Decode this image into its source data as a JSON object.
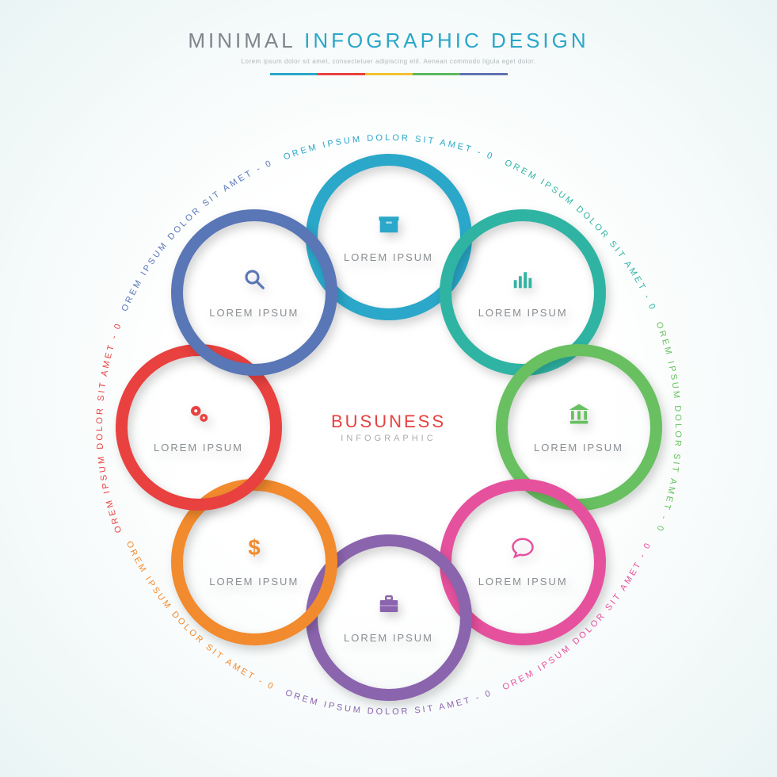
{
  "header": {
    "title_part1": "MINIMAL",
    "title_part2": "INFOGRAPHIC DESIGN",
    "title_part1_color": "#7d868c",
    "title_part2_color": "#2aa7c9",
    "subtitle": "Lorem ipsum dolor sit amet, consectetuer adipiscing elit. Aenean commodo ligula eget dolor.",
    "subtitle_color": "#b2b7ba",
    "rule_colors": [
      "#2aa7c9",
      "#e8413f",
      "#f2c233",
      "#5cb860",
      "#5f73b1"
    ]
  },
  "center": {
    "line1": "BUSUNESS",
    "line1_color": "#e8413f",
    "line2": "INFOGRAPHIC"
  },
  "layout": {
    "stage_size": 780,
    "ring_diameter": 210,
    "ring_border": 15,
    "orbit_radius": 240,
    "arc_text_radius": 362
  },
  "rings": [
    {
      "id": "01",
      "angle": -90,
      "color": "#2aa7c9",
      "icon": "box",
      "label": "LOREM IPSUM",
      "arc": "LOREM  IPSUM  DOLOR  SIT  AMET - 01"
    },
    {
      "id": "02",
      "angle": -45,
      "color": "#2fb4a3",
      "icon": "barchart",
      "label": "LOREM IPSUM",
      "arc": "LOREM  IPSUM  DOLOR  SIT  AMET - 02"
    },
    {
      "id": "03",
      "angle": 0,
      "color": "#68c060",
      "icon": "bank",
      "label": "LOREM IPSUM",
      "arc": "LOREM  IPSUM  DOLOR  SIT  AMET - 03"
    },
    {
      "id": "04",
      "angle": 45,
      "color": "#e6519e",
      "icon": "speech",
      "label": "LOREM IPSUM",
      "arc": "LOREM  IPSUM  DOLOR  SIT  AMET - 04"
    },
    {
      "id": "05",
      "angle": 90,
      "color": "#8b64ae",
      "icon": "briefcase",
      "label": "LOREM IPSUM",
      "arc": "LOREM  IPSUM  DOLOR  SIT  AMET - 05"
    },
    {
      "id": "06",
      "angle": 135,
      "color": "#f28a2e",
      "icon": "dollar",
      "label": "LOREM IPSUM",
      "arc": "LOREM  IPSUM  DOLOR  SIT  AMET - 06"
    },
    {
      "id": "07",
      "angle": 180,
      "color": "#e8413f",
      "icon": "gears",
      "label": "LOREM IPSUM",
      "arc": "LOREM  IPSUM  DOLOR  SIT  AMET - 07"
    },
    {
      "id": "08",
      "angle": -135,
      "color": "#5976b6",
      "icon": "search",
      "label": "LOREM IPSUM",
      "arc": "LOREM  IPSUM  DOLOR  SIT  AMET - 08"
    }
  ]
}
